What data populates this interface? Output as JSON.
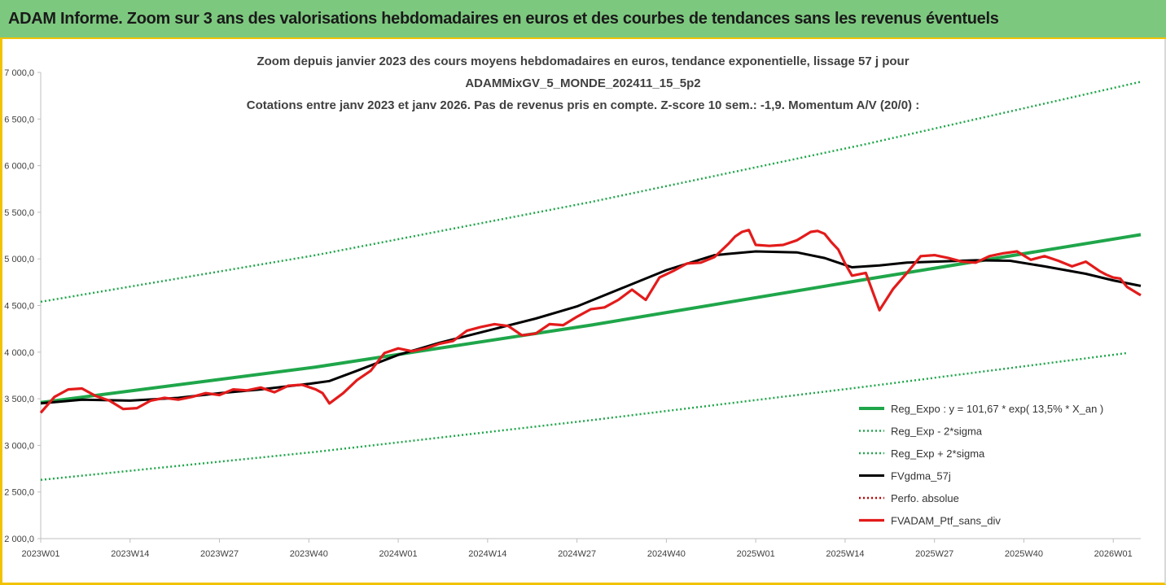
{
  "header": {
    "title": "ADAM Informe. Zoom sur 3 ans des valorisations hebdomadaires en euros et des courbes de tendances sans les revenus éventuels"
  },
  "colors": {
    "trend": "#1fa64a",
    "smooth": "#000000",
    "portfolio": "#e31b1b",
    "perf": "#c00000",
    "header_bg": "#7dc87f",
    "accent": "#f2c200"
  },
  "chart_data": {
    "type": "line",
    "title_lines": [
      "Zoom depuis janvier 2023 des cours moyens hebdomadaires  en euros, tendance exponentielle, lissage 57 j pour",
      "ADAMMixGV_5_MONDE_202411_15_5p2",
      "Cotations entre janv 2023 et janv 2026. Pas de revenus pris en compte. Z-score 10 sem.: -1,9. Momentum A/V (20/0) :"
    ],
    "x_tick_labels": [
      "2023W01",
      "2023W14",
      "2023W27",
      "2023W40",
      "2024W01",
      "2024W14",
      "2024W27",
      "2024W40",
      "2025W01",
      "2025W14",
      "2025W27",
      "2025W40",
      "2026W01"
    ],
    "x_tick_weeks": [
      0,
      13,
      26,
      39,
      52,
      65,
      78,
      91,
      104,
      117,
      130,
      143,
      156
    ],
    "x_range": [
      0,
      160
    ],
    "y_tick_labels": [
      "2 000,0",
      "2 500,0",
      "3 000,0",
      "3 500,0",
      "4 000,0",
      "4 500,0",
      "5 000,0",
      "5 500,0",
      "6 000,0",
      "6 500,0",
      "7 000,0"
    ],
    "ylim": [
      2000,
      7000
    ],
    "series": [
      {
        "name": "Reg_Expo : y = 101,67 * exp( 13,5% *  X_an )",
        "style": "solid-green",
        "x": [
          0,
          40,
          80,
          120,
          160
        ],
        "values": [
          3460,
          3840,
          4290,
          4780,
          5260
        ]
      },
      {
        "name": "Reg_Exp - 2*sigma",
        "style": "dotted-green",
        "x": [
          0,
          40,
          80,
          120,
          158
        ],
        "values": [
          2630,
          2930,
          3270,
          3630,
          3990
        ]
      },
      {
        "name": "Reg_Exp + 2*sigma",
        "style": "dotted-green",
        "x": [
          0,
          40,
          80,
          120,
          160
        ],
        "values": [
          4540,
          5040,
          5610,
          6230,
          6900
        ]
      },
      {
        "name": "FVgdma_57j",
        "style": "solid-black",
        "x": [
          0,
          6,
          13,
          20,
          26,
          32,
          39,
          42,
          46,
          52,
          58,
          65,
          72,
          78,
          85,
          91,
          98,
          104,
          110,
          114,
          118,
          122,
          126,
          130,
          136,
          141,
          146,
          152,
          156,
          160
        ],
        "values": [
          3450,
          3490,
          3480,
          3510,
          3560,
          3600,
          3660,
          3690,
          3800,
          3970,
          4100,
          4230,
          4360,
          4490,
          4700,
          4880,
          5040,
          5080,
          5070,
          5010,
          4910,
          4930,
          4960,
          4970,
          4985,
          4980,
          4920,
          4840,
          4770,
          4710
        ]
      },
      {
        "name": "Perfo. absolue",
        "style": "dotted-red",
        "x": [],
        "values": []
      },
      {
        "name": "FVADAM_Ptf_sans_div",
        "style": "solid-red",
        "x": [
          0,
          2,
          4,
          6,
          8,
          10,
          12,
          14,
          16,
          18,
          20,
          22,
          24,
          26,
          28,
          30,
          32,
          34,
          36,
          38,
          40,
          41,
          42,
          44,
          46,
          48,
          50,
          52,
          54,
          56,
          58,
          60,
          62,
          64,
          66,
          68,
          70,
          72,
          74,
          76,
          78,
          80,
          82,
          84,
          86,
          88,
          90,
          92,
          94,
          96,
          98,
          100,
          101,
          102,
          103,
          104,
          106,
          108,
          110,
          112,
          113,
          114,
          115,
          116,
          117,
          118,
          120,
          122,
          124,
          126,
          128,
          130,
          132,
          134,
          136,
          138,
          140,
          142,
          144,
          146,
          148,
          150,
          152,
          154,
          155,
          156,
          157,
          158,
          160
        ],
        "values": [
          3350,
          3520,
          3600,
          3610,
          3530,
          3480,
          3390,
          3400,
          3480,
          3510,
          3490,
          3520,
          3560,
          3540,
          3600,
          3590,
          3620,
          3570,
          3640,
          3650,
          3600,
          3560,
          3450,
          3560,
          3700,
          3800,
          3990,
          4040,
          4010,
          4040,
          4090,
          4120,
          4230,
          4270,
          4300,
          4280,
          4180,
          4200,
          4300,
          4290,
          4380,
          4460,
          4480,
          4560,
          4670,
          4560,
          4800,
          4870,
          4950,
          4960,
          5020,
          5160,
          5240,
          5290,
          5310,
          5150,
          5140,
          5150,
          5200,
          5290,
          5300,
          5270,
          5180,
          5100,
          4950,
          4820,
          4850,
          4450,
          4680,
          4850,
          5030,
          5040,
          5010,
          4970,
          4960,
          5030,
          5060,
          5080,
          4990,
          5030,
          4980,
          4920,
          4970,
          4870,
          4830,
          4800,
          4790,
          4700,
          4610
        ]
      }
    ],
    "legend_position": "bottom-right"
  }
}
